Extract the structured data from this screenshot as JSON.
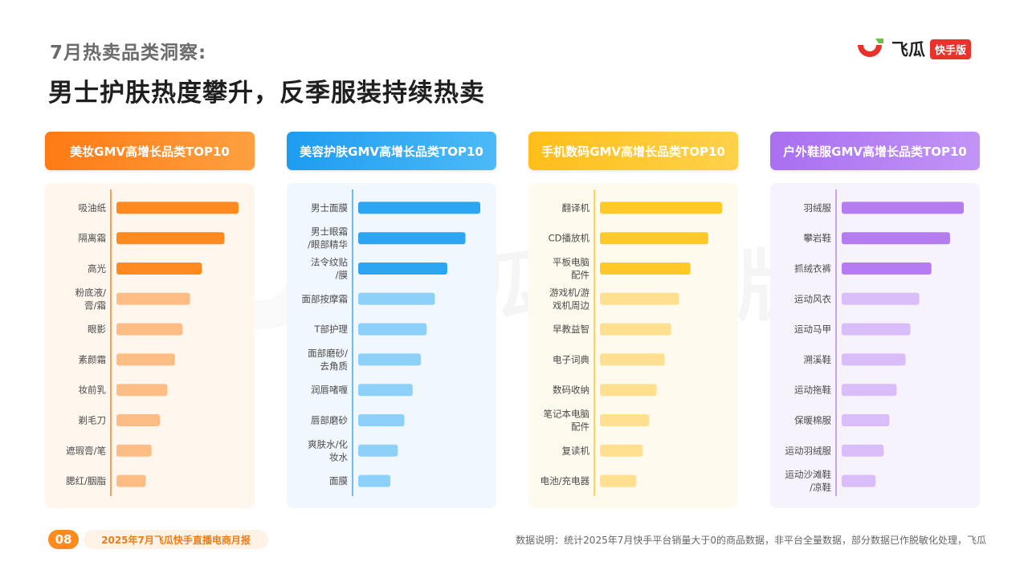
{
  "header": {
    "subtitle": "7月热卖品类洞察:",
    "title": "男士护肤热度攀升，反季服装持续热卖"
  },
  "logo": {
    "name": "飞瓜",
    "badge": "快手版"
  },
  "watermark": {
    "text": "飞瓜 快手版"
  },
  "colors": {
    "orange": "#ff8a1f",
    "blue": "#2aa7f0",
    "yellow": "#ffc928",
    "purple": "#b57cf0"
  },
  "chart_data": [
    {
      "type": "bar",
      "title": "美妆GMV高增长品类TOP10",
      "categories": [
        "吸油纸",
        "隔离霜",
        "高光",
        "粉底液/\n膏/霜",
        "眼影",
        "素颜霜",
        "妆前乳",
        "剃毛刀",
        "遮瑕膏/笔",
        "腮红/胭脂"
      ],
      "values": [
        146,
        129,
        102,
        88,
        79,
        70,
        61,
        52,
        42,
        35
      ]
    },
    {
      "type": "bar",
      "title": "美容护肤GMV高增长品类TOP10",
      "categories": [
        "男士面膜",
        "男士眼霜\n/眼部精华",
        "法令纹贴\n/膜",
        "面部按摩霜",
        "T部护理",
        "面部磨砂/\n去角质",
        "润唇啫喱",
        "唇部磨砂",
        "爽肤水/化\n妆水",
        "面膜"
      ],
      "values": [
        148,
        130,
        108,
        93,
        83,
        76,
        66,
        56,
        48,
        39
      ]
    },
    {
      "type": "bar",
      "title": "手机数码GMV高增长品类TOP10",
      "categories": [
        "翻译机",
        "CD播放机",
        "平板电脑\n配件",
        "游戏机/游\n戏机周边",
        "早教益智",
        "电子词典",
        "数码收纳",
        "笔记本电脑\n配件",
        "复读机",
        "电池/充电器"
      ],
      "values": [
        151,
        134,
        112,
        98,
        88,
        80,
        70,
        61,
        53,
        45
      ]
    },
    {
      "type": "bar",
      "title": "户外鞋服GMV高增长品类TOP10",
      "categories": [
        "羽绒服",
        "攀岩鞋",
        "抓绒衣裤",
        "运动风衣",
        "运动马甲",
        "溯溪鞋",
        "运动拖鞋",
        "保暖棉服",
        "运动羽绒服",
        "运动沙滩鞋\n/凉鞋"
      ],
      "values": [
        151,
        134,
        111,
        96,
        85,
        79,
        68,
        59,
        52,
        42
      ]
    }
  ],
  "footer": {
    "page": "08",
    "report": "2025年7月飞瓜快手直播电商月报",
    "note": "数据说明：统计2025年7月快手平台销量大于0的商品数据，非平台全量数据，部分数据已作脱敏化处理，飞瓜"
  }
}
